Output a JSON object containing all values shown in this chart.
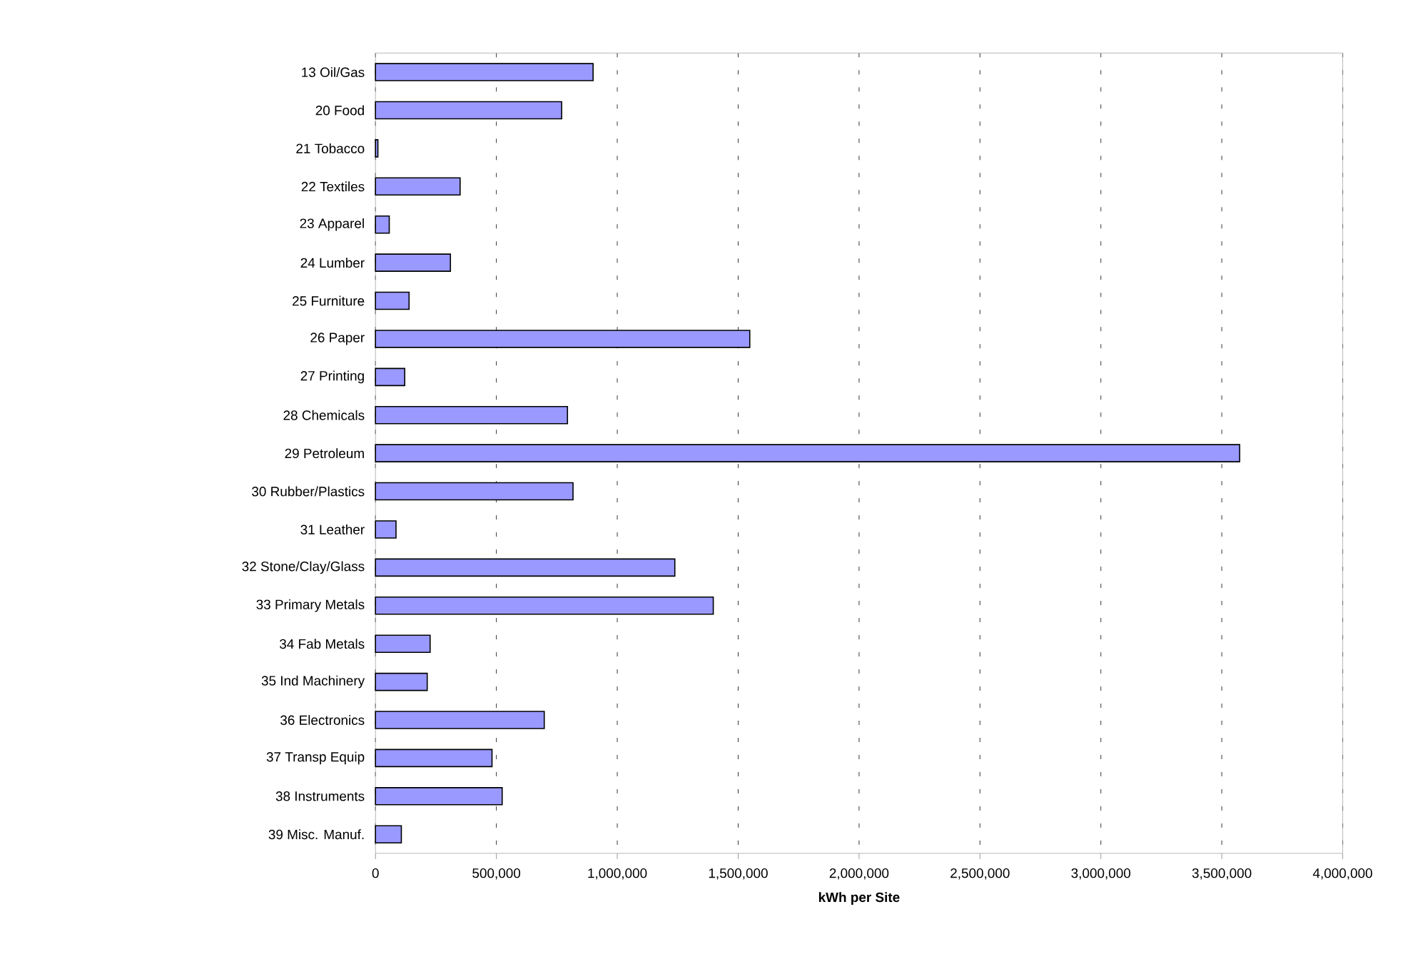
{
  "chart_data": {
    "type": "bar",
    "orientation": "horizontal",
    "xlabel": "kWh per Site",
    "categories": [
      "13 Oil/Gas",
      "20 Food",
      "21 Tobacco",
      "22 Textiles",
      "23 Apparel",
      "24 Lumber",
      "25 Furniture",
      "26 Paper",
      "27 Printing",
      "28 Chemicals",
      "29 Petroleum",
      "30 Rubber/Plastics",
      "31 Leather",
      "32 Stone/Clay/Glass",
      "33 Primary Metals",
      "34 Fab Metals",
      "35 Ind Machinery",
      "36 Electronics",
      "37 Transp Equip",
      "38 Instruments",
      "39 Misc. Manuf."
    ],
    "values": [
      900000,
      770000,
      10000,
      350000,
      57000,
      310000,
      139000,
      1548000,
      121000,
      794000,
      3574000,
      817000,
      85000,
      1238000,
      1397000,
      226000,
      214000,
      698000,
      482000,
      524000,
      107000
    ],
    "color": "#9999ff",
    "xlim": [
      0,
      4000000
    ],
    "xticks": [
      0,
      {
        "value": 500000,
        "label": "500,000"
      },
      {
        "value": 1000000,
        "label": "1,000,000"
      },
      {
        "value": 1500000,
        "label": "1,500,000"
      },
      {
        "value": 2000000,
        "label": "2,000,000"
      },
      {
        "value": 2500000,
        "label": "2,500,000"
      },
      {
        "value": 3000000,
        "label": "3,000,000"
      },
      {
        "value": 3500000,
        "label": "3,500,000"
      },
      {
        "value": 4000000,
        "label": "4,000,000"
      }
    ],
    "grid": "x"
  }
}
